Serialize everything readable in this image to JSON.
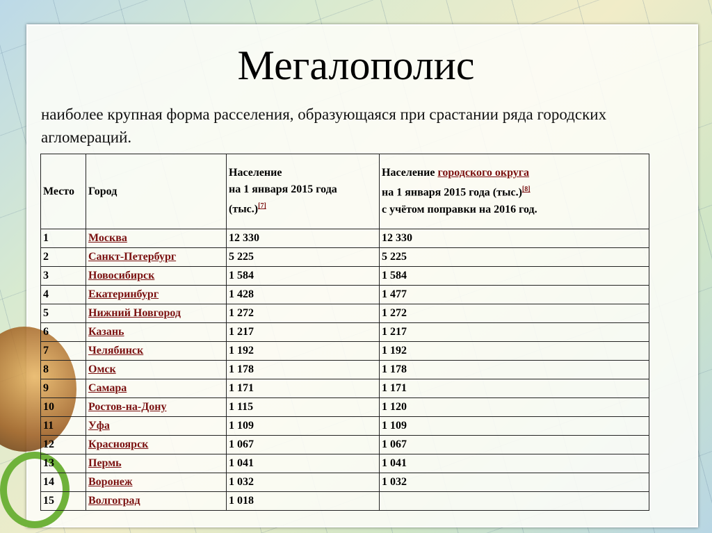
{
  "title": "Мегалополис",
  "subtitle": "наиболее крупная форма расселения, образующаяся при срастании ряда городских агломераций.",
  "table": {
    "headers": {
      "place": "Место",
      "city": "Город",
      "pop2015_line1": "Население",
      "pop2015_line2": "на 1 января 2015 года",
      "pop2015_line3": "(тыс.)",
      "pop2015_ref": "[7]",
      "district_prefix": "Население ",
      "district_link": "городского округа",
      "district_line2": "на 1 января 2015 года (тыс.)",
      "district_ref": "[8]",
      "district_line3": "с учётом поправки на 2016 год."
    },
    "rows": [
      {
        "place": "1",
        "city": "Москва",
        "pop": "12 330",
        "district": "12 330"
      },
      {
        "place": "2",
        "city": "Санкт-Петербург",
        "pop": "5 225",
        "district": "5 225"
      },
      {
        "place": "3",
        "city": "Новосибирск",
        "pop": "1 584",
        "district": "1 584"
      },
      {
        "place": "4",
        "city": "Екатеринбург",
        "pop": "1 428",
        "district": "1 477"
      },
      {
        "place": "5",
        "city": "Нижний Новгород",
        "pop": "1 272",
        "district": "1 272"
      },
      {
        "place": "6",
        "city": "Казань",
        "pop": "1 217",
        "district": "1 217"
      },
      {
        "place": "7",
        "city": "Челябинск",
        "pop": "1 192",
        "district": "1 192"
      },
      {
        "place": "8",
        "city": "Омск",
        "pop": "1 178",
        "district": "1 178"
      },
      {
        "place": "9",
        "city": "Самара",
        "pop": "1 171",
        "district": "1 171"
      },
      {
        "place": "10",
        "city": "Ростов-на-Дону",
        "pop": "1 115",
        "district": "1 120"
      },
      {
        "place": "11",
        "city": "Уфа",
        "pop": "1 109",
        "district": "1 109"
      },
      {
        "place": "12",
        "city": "Красноярск",
        "pop": "1 067",
        "district": "1 067"
      },
      {
        "place": "13",
        "city": "Пермь",
        "pop": "1 041",
        "district": "1 041"
      },
      {
        "place": "14",
        "city": "Воронеж",
        "pop": "1 032",
        "district": "1 032"
      },
      {
        "place": "15",
        "city": "Волгоград",
        "pop": "1 018",
        "district": ""
      }
    ]
  },
  "colors": {
    "link": "#7a1010"
  }
}
